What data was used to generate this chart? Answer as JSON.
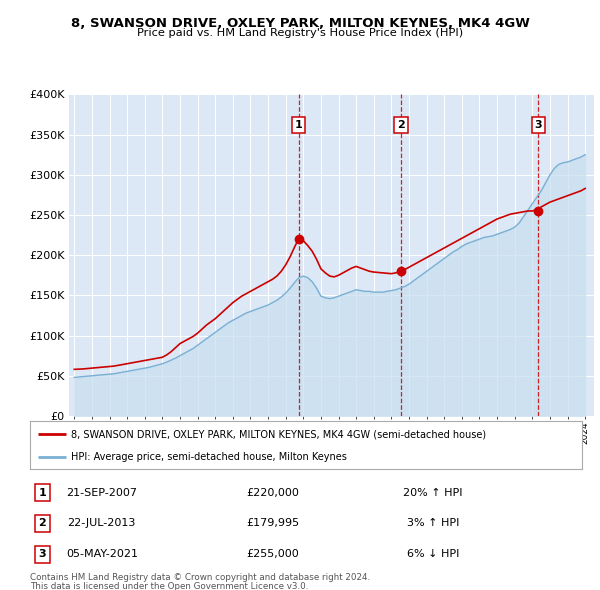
{
  "title": "8, SWANSON DRIVE, OXLEY PARK, MILTON KEYNES, MK4 4GW",
  "subtitle": "Price paid vs. HM Land Registry's House Price Index (HPI)",
  "legend_property": "8, SWANSON DRIVE, OXLEY PARK, MILTON KEYNES, MK4 4GW (semi-detached house)",
  "legend_hpi": "HPI: Average price, semi-detached house, Milton Keynes",
  "property_color": "#cc0000",
  "hpi_color": "#7ab0d4",
  "hpi_fill_color": "#c8dff0",
  "plot_bg_color": "#dce8f5",
  "ylim": [
    0,
    400000
  ],
  "ytick_labels": [
    "£0",
    "£50K",
    "£100K",
    "£150K",
    "£200K",
    "£250K",
    "£300K",
    "£350K",
    "£400K"
  ],
  "ytick_values": [
    0,
    50000,
    100000,
    150000,
    200000,
    250000,
    300000,
    350000,
    400000
  ],
  "transactions": [
    {
      "num": 1,
      "date": "21-SEP-2007",
      "price": "£220,000",
      "hpi_pct": "20%",
      "hpi_dir": "↑"
    },
    {
      "num": 2,
      "date": "22-JUL-2013",
      "price": "£179,995",
      "hpi_pct": "3%",
      "hpi_dir": "↑"
    },
    {
      "num": 3,
      "date": "05-MAY-2021",
      "price": "£255,000",
      "hpi_pct": "6%",
      "hpi_dir": "↓"
    }
  ],
  "transaction_dates_decimal": [
    2007.73,
    2013.55,
    2021.34
  ],
  "transaction_prices": [
    220000,
    179995,
    255000
  ],
  "footnote_line1": "Contains HM Land Registry data © Crown copyright and database right 2024.",
  "footnote_line2": "This data is licensed under the Open Government Licence v3.0.",
  "property_line_x": [
    1995.0,
    1995.25,
    1995.5,
    1995.75,
    1996.0,
    1996.25,
    1996.5,
    1996.75,
    1997.0,
    1997.25,
    1997.5,
    1997.75,
    1998.0,
    1998.25,
    1998.5,
    1998.75,
    1999.0,
    1999.25,
    1999.5,
    1999.75,
    2000.0,
    2000.25,
    2000.5,
    2000.75,
    2001.0,
    2001.25,
    2001.5,
    2001.75,
    2002.0,
    2002.25,
    2002.5,
    2002.75,
    2003.0,
    2003.25,
    2003.5,
    2003.75,
    2004.0,
    2004.25,
    2004.5,
    2004.75,
    2005.0,
    2005.25,
    2005.5,
    2005.75,
    2006.0,
    2006.25,
    2006.5,
    2006.75,
    2007.0,
    2007.25,
    2007.5,
    2007.73,
    2008.0,
    2008.25,
    2008.5,
    2008.75,
    2009.0,
    2009.25,
    2009.5,
    2009.75,
    2010.0,
    2010.25,
    2010.5,
    2010.75,
    2011.0,
    2011.25,
    2011.5,
    2011.75,
    2012.0,
    2012.25,
    2012.5,
    2012.75,
    2013.0,
    2013.25,
    2013.55,
    2013.75,
    2014.0,
    2014.25,
    2014.5,
    2014.75,
    2015.0,
    2015.25,
    2015.5,
    2015.75,
    2016.0,
    2016.25,
    2016.5,
    2016.75,
    2017.0,
    2017.25,
    2017.5,
    2017.75,
    2018.0,
    2018.25,
    2018.5,
    2018.75,
    2019.0,
    2019.25,
    2019.5,
    2019.75,
    2020.0,
    2020.25,
    2020.5,
    2020.75,
    2021.0,
    2021.34,
    2021.5,
    2021.75,
    2022.0,
    2022.25,
    2022.5,
    2022.75,
    2023.0,
    2023.25,
    2023.5,
    2023.75,
    2024.0
  ],
  "property_line_y": [
    58000,
    58200,
    58500,
    59000,
    59500,
    60000,
    60500,
    61000,
    61500,
    62000,
    63000,
    64000,
    65000,
    66000,
    67000,
    68000,
    69000,
    70000,
    71000,
    72000,
    73000,
    76000,
    80000,
    85000,
    90000,
    93000,
    96000,
    99000,
    103000,
    108000,
    113000,
    117000,
    121000,
    126000,
    131000,
    136000,
    141000,
    145000,
    149000,
    152000,
    155000,
    158000,
    161000,
    164000,
    167000,
    170000,
    174000,
    180000,
    188000,
    198000,
    210000,
    220000,
    218000,
    212000,
    205000,
    195000,
    183000,
    178000,
    174000,
    173000,
    175000,
    178000,
    181000,
    184000,
    186000,
    184000,
    182000,
    180000,
    179000,
    178500,
    178000,
    177500,
    177000,
    178000,
    179995,
    182000,
    185000,
    188000,
    191000,
    194000,
    197000,
    200000,
    203000,
    206000,
    209000,
    212000,
    215000,
    218000,
    221000,
    224000,
    227000,
    230000,
    233000,
    236000,
    239000,
    242000,
    245000,
    247000,
    249000,
    251000,
    252000,
    253000,
    254000,
    255000,
    255000,
    257000,
    260000,
    263000,
    266000,
    268000,
    270000,
    272000,
    274000,
    276000,
    278000,
    280000,
    283000
  ],
  "hpi_line_x": [
    1995.0,
    1995.25,
    1995.5,
    1995.75,
    1996.0,
    1996.25,
    1996.5,
    1996.75,
    1997.0,
    1997.25,
    1997.5,
    1997.75,
    1998.0,
    1998.25,
    1998.5,
    1998.75,
    1999.0,
    1999.25,
    1999.5,
    1999.75,
    2000.0,
    2000.25,
    2000.5,
    2000.75,
    2001.0,
    2001.25,
    2001.5,
    2001.75,
    2002.0,
    2002.25,
    2002.5,
    2002.75,
    2003.0,
    2003.25,
    2003.5,
    2003.75,
    2004.0,
    2004.25,
    2004.5,
    2004.75,
    2005.0,
    2005.25,
    2005.5,
    2005.75,
    2006.0,
    2006.25,
    2006.5,
    2006.75,
    2007.0,
    2007.25,
    2007.5,
    2007.75,
    2008.0,
    2008.25,
    2008.5,
    2008.75,
    2009.0,
    2009.25,
    2009.5,
    2009.75,
    2010.0,
    2010.25,
    2010.5,
    2010.75,
    2011.0,
    2011.25,
    2011.5,
    2011.75,
    2012.0,
    2012.25,
    2012.5,
    2012.75,
    2013.0,
    2013.25,
    2013.5,
    2013.75,
    2014.0,
    2014.25,
    2014.5,
    2014.75,
    2015.0,
    2015.25,
    2015.5,
    2015.75,
    2016.0,
    2016.25,
    2016.5,
    2016.75,
    2017.0,
    2017.25,
    2017.5,
    2017.75,
    2018.0,
    2018.25,
    2018.5,
    2018.75,
    2019.0,
    2019.25,
    2019.5,
    2019.75,
    2020.0,
    2020.25,
    2020.5,
    2020.75,
    2021.0,
    2021.25,
    2021.5,
    2021.75,
    2022.0,
    2022.25,
    2022.5,
    2022.75,
    2023.0,
    2023.25,
    2023.5,
    2023.75,
    2024.0
  ],
  "hpi_line_y": [
    48000,
    48500,
    49000,
    49500,
    50000,
    50500,
    51000,
    51500,
    52000,
    52500,
    53500,
    54500,
    55500,
    56500,
    57500,
    58500,
    59500,
    60500,
    62000,
    63500,
    65000,
    67000,
    69500,
    72000,
    75000,
    78000,
    81000,
    84000,
    88000,
    92000,
    96000,
    100000,
    104000,
    108000,
    112000,
    116000,
    119000,
    122000,
    125000,
    128000,
    130000,
    132000,
    134000,
    136000,
    138000,
    141000,
    144000,
    148000,
    153000,
    159000,
    166000,
    172000,
    174000,
    172000,
    167000,
    159000,
    149000,
    147000,
    146000,
    147000,
    149000,
    151000,
    153000,
    155000,
    157000,
    156000,
    155000,
    155000,
    154000,
    154000,
    154000,
    155000,
    156000,
    157000,
    159000,
    161000,
    164000,
    168000,
    172000,
    176000,
    180000,
    184000,
    188000,
    192000,
    196000,
    200000,
    204000,
    207000,
    211000,
    214000,
    216000,
    218000,
    220000,
    222000,
    223000,
    224000,
    226000,
    228000,
    230000,
    232000,
    235000,
    240000,
    248000,
    256000,
    264000,
    272000,
    280000,
    290000,
    300000,
    308000,
    313000,
    315000,
    316000,
    318000,
    320000,
    322000,
    325000
  ]
}
